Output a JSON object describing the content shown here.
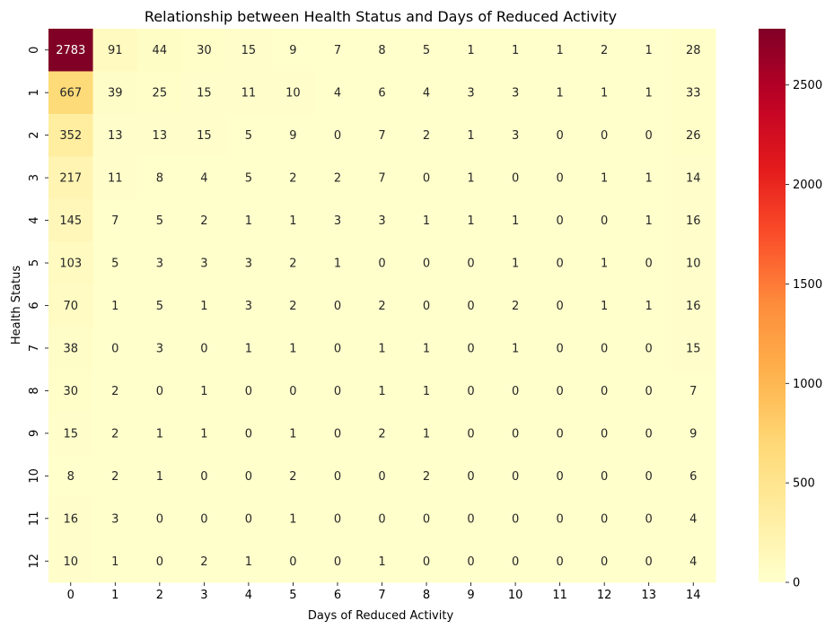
{
  "chart_data": {
    "type": "heatmap",
    "title": "Relationship between Health Status and Days of Reduced Activity",
    "xlabel": "Days of Reduced Activity",
    "ylabel": "Health Status",
    "x_categories": [
      "0",
      "1",
      "2",
      "3",
      "4",
      "5",
      "6",
      "7",
      "8",
      "9",
      "10",
      "11",
      "12",
      "13",
      "14"
    ],
    "y_categories": [
      "0",
      "1",
      "2",
      "3",
      "4",
      "5",
      "6",
      "7",
      "8",
      "9",
      "10",
      "11",
      "12"
    ],
    "values": [
      [
        2783,
        91,
        44,
        30,
        15,
        9,
        7,
        8,
        5,
        1,
        1,
        1,
        2,
        1,
        28
      ],
      [
        667,
        39,
        25,
        15,
        11,
        10,
        4,
        6,
        4,
        3,
        3,
        1,
        1,
        1,
        33
      ],
      [
        352,
        13,
        13,
        15,
        5,
        9,
        0,
        7,
        2,
        1,
        3,
        0,
        0,
        0,
        26
      ],
      [
        217,
        11,
        8,
        4,
        5,
        2,
        2,
        7,
        0,
        1,
        0,
        0,
        1,
        1,
        14
      ],
      [
        145,
        7,
        5,
        2,
        1,
        1,
        3,
        3,
        1,
        1,
        1,
        0,
        0,
        1,
        16
      ],
      [
        103,
        5,
        3,
        3,
        3,
        2,
        1,
        0,
        0,
        0,
        1,
        0,
        1,
        0,
        10
      ],
      [
        70,
        1,
        5,
        1,
        3,
        2,
        0,
        2,
        0,
        0,
        2,
        0,
        1,
        1,
        16
      ],
      [
        38,
        0,
        3,
        0,
        1,
        1,
        0,
        1,
        1,
        0,
        1,
        0,
        0,
        0,
        15
      ],
      [
        30,
        2,
        0,
        1,
        0,
        0,
        0,
        1,
        1,
        0,
        0,
        0,
        0,
        0,
        7
      ],
      [
        15,
        2,
        1,
        1,
        0,
        1,
        0,
        2,
        1,
        0,
        0,
        0,
        0,
        0,
        9
      ],
      [
        8,
        2,
        1,
        0,
        0,
        2,
        0,
        0,
        2,
        0,
        0,
        0,
        0,
        0,
        6
      ],
      [
        16,
        3,
        0,
        0,
        0,
        1,
        0,
        0,
        0,
        0,
        0,
        0,
        0,
        0,
        4
      ],
      [
        10,
        1,
        0,
        2,
        1,
        0,
        0,
        1,
        0,
        0,
        0,
        0,
        0,
        0,
        4
      ]
    ],
    "colormap": "YlOrRd",
    "colorbar": {
      "min": 0,
      "max": 2783,
      "ticks": [
        0,
        500,
        1000,
        1500,
        2000,
        2500
      ]
    },
    "annotations": true,
    "grid": false
  }
}
